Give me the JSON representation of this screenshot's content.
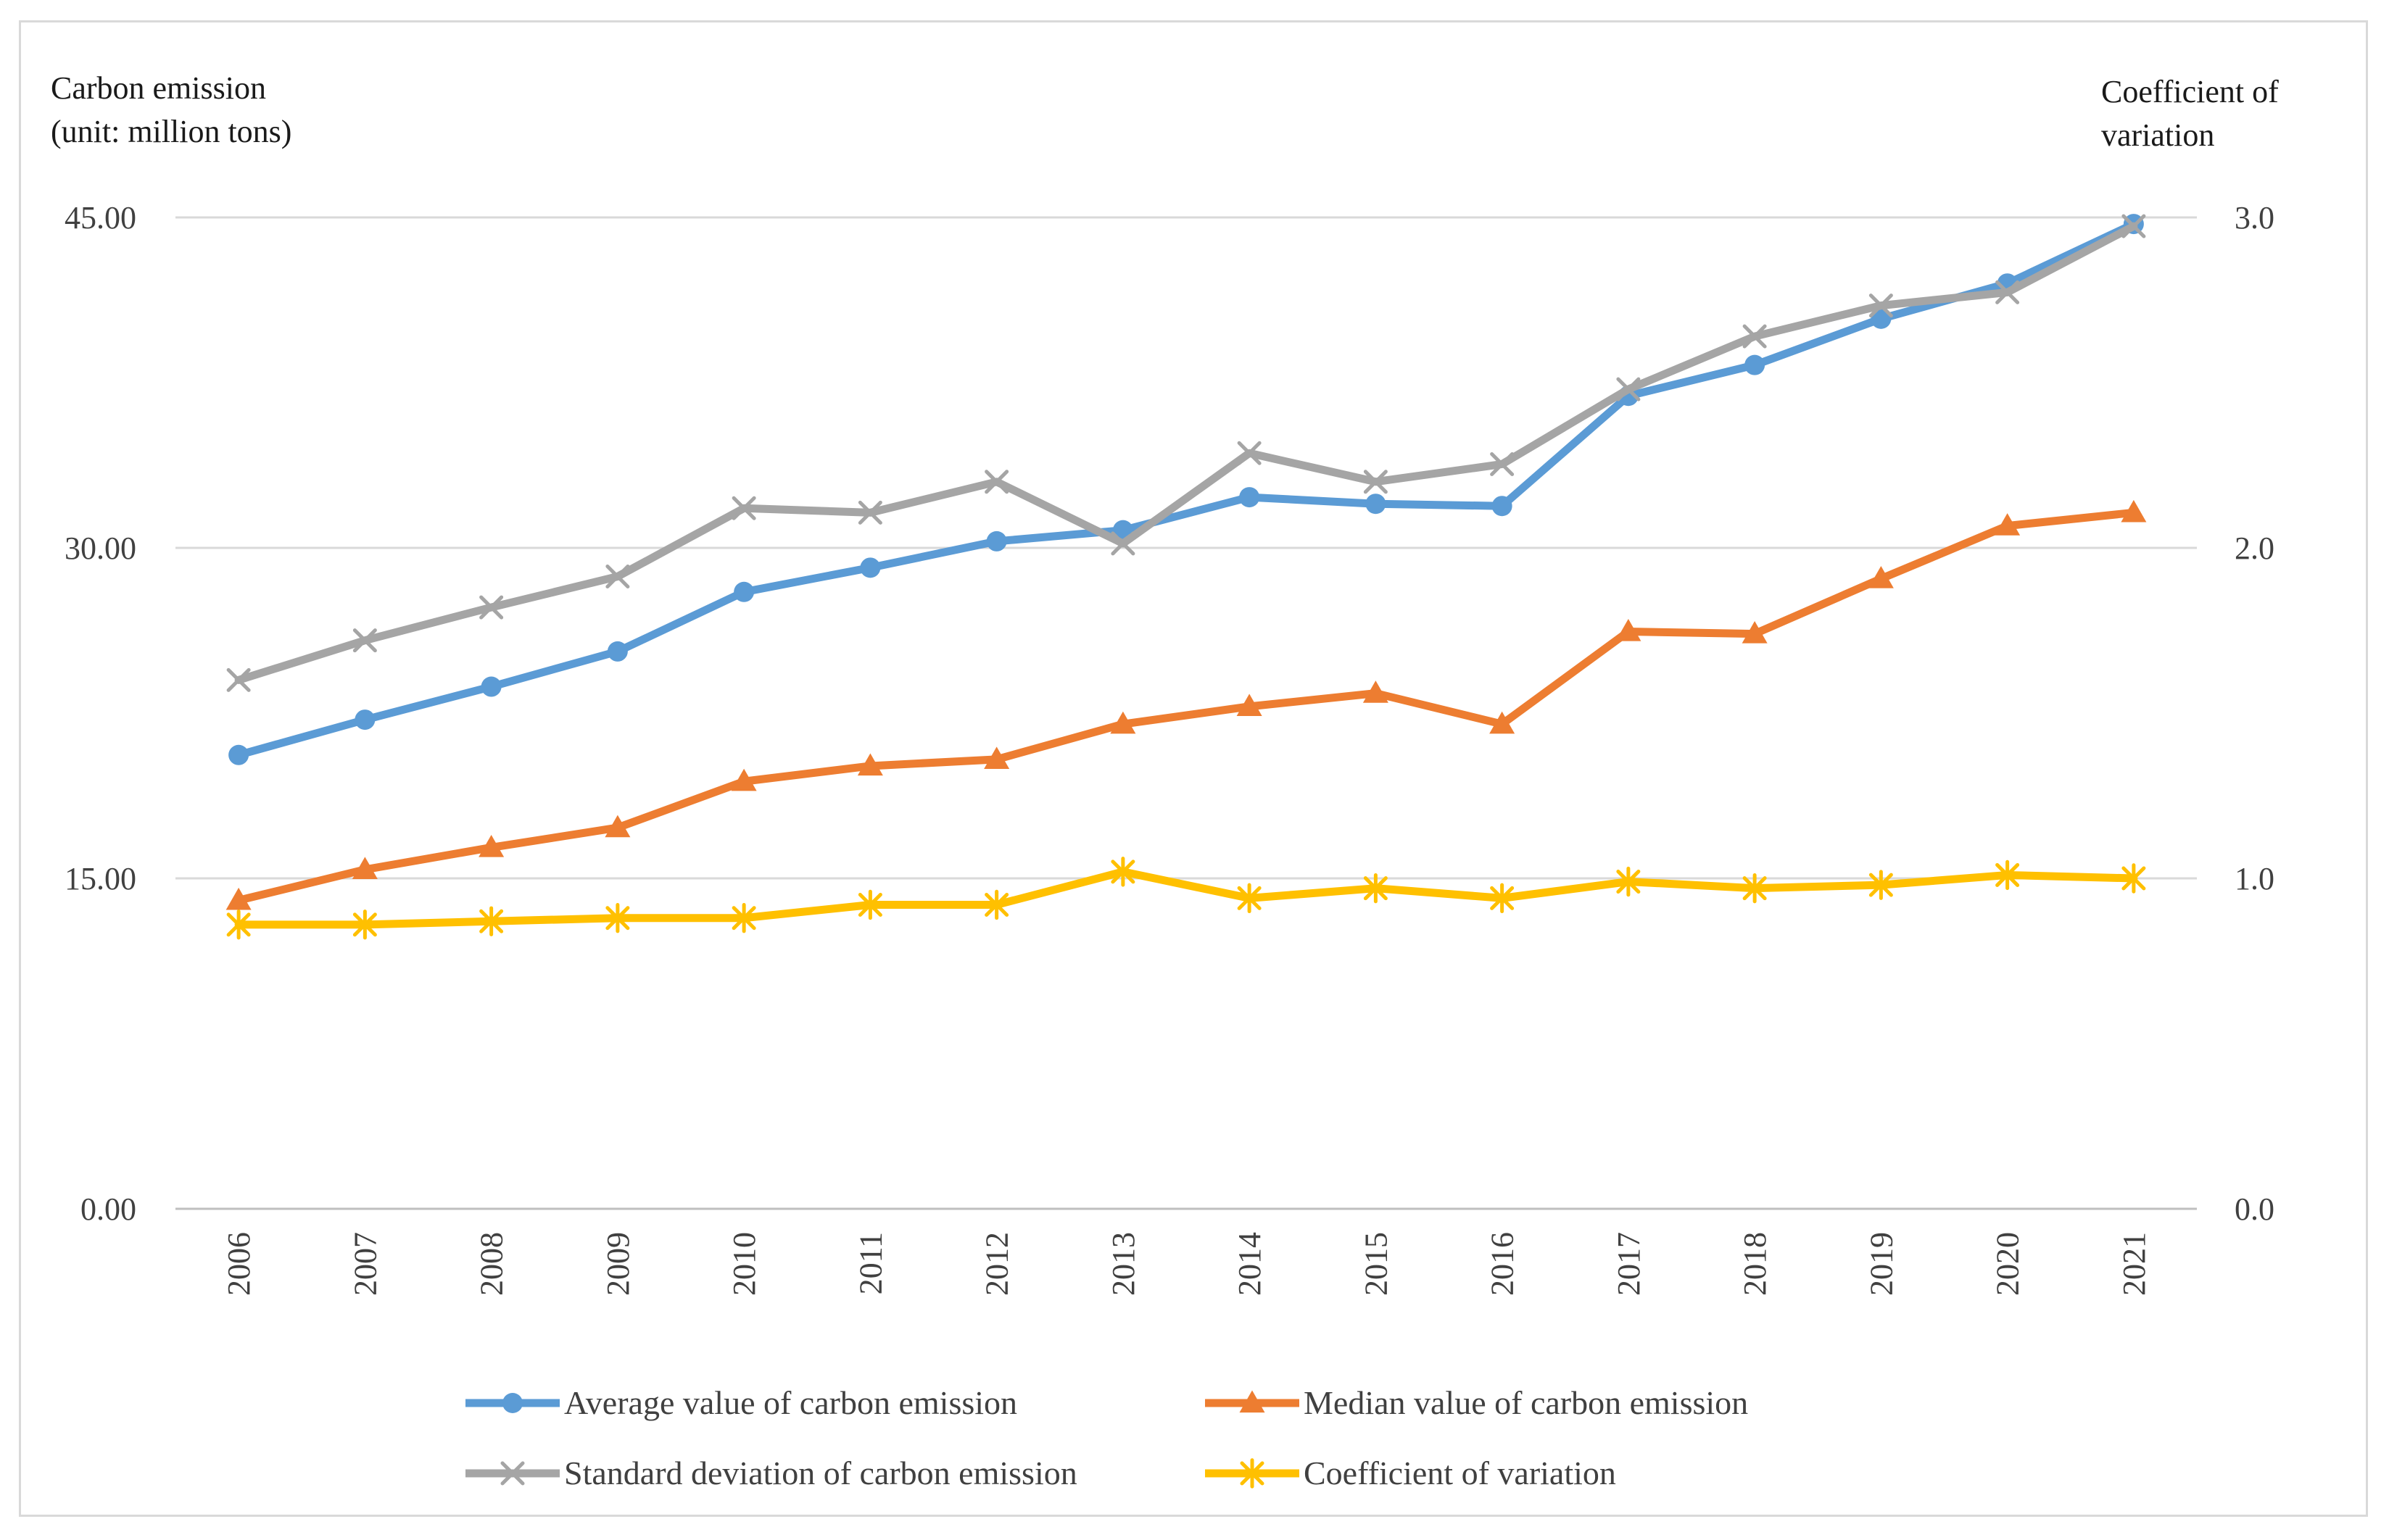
{
  "chart_data": {
    "type": "line",
    "left_axis_title": [
      "Carbon emission",
      "(unit:  million  tons)"
    ],
    "right_axis_title": [
      "Coefficient  of",
      "variation"
    ],
    "x": [
      "2006",
      "2007",
      "2008",
      "2009",
      "2010",
      "2011",
      "2012",
      "2013",
      "2014",
      "2015",
      "2016",
      "2017",
      "2018",
      "2019",
      "2020",
      "2021"
    ],
    "y_left": {
      "ticks": [
        "0.00",
        "15.00",
        "30.00",
        "45.00"
      ],
      "tick_values": [
        0,
        15,
        30,
        45
      ],
      "ylim": [
        0,
        45
      ]
    },
    "y_right": {
      "ticks": [
        "0.0",
        "1.0",
        "2.0",
        "3.0"
      ],
      "tick_values": [
        0,
        1,
        2,
        3
      ],
      "ylim": [
        0,
        3
      ]
    },
    "grid": true,
    "legend_position": "bottom",
    "series": [
      {
        "name": "Average value of carbon emission",
        "axis": "left",
        "color": "#5B9BD5",
        "marker": "circle",
        "values": [
          20.6,
          22.2,
          23.7,
          25.3,
          28.0,
          29.1,
          30.3,
          30.8,
          32.3,
          32.0,
          31.9,
          36.9,
          38.3,
          40.4,
          42.0,
          44.7
        ]
      },
      {
        "name": "Median value of carbon emission",
        "axis": "left",
        "color": "#ED7D31",
        "marker": "triangle",
        "values": [
          14.0,
          15.4,
          16.4,
          17.3,
          19.4,
          20.1,
          20.4,
          22.0,
          22.8,
          23.4,
          22.0,
          26.2,
          26.1,
          28.6,
          31.0,
          31.6
        ]
      },
      {
        "name": "Standard deviation of carbon emission",
        "axis": "left",
        "color": "#A5A5A5",
        "marker": "x",
        "values": [
          24.0,
          25.8,
          27.3,
          28.7,
          31.8,
          31.6,
          33.0,
          30.2,
          34.3,
          33.0,
          33.8,
          37.2,
          39.6,
          41.0,
          41.6,
          44.6
        ]
      },
      {
        "name": "Coefficient of variation",
        "axis": "right",
        "color": "#FFC000",
        "marker": "star",
        "values": [
          0.86,
          0.86,
          0.87,
          0.88,
          0.88,
          0.92,
          0.92,
          1.02,
          0.94,
          0.97,
          0.94,
          0.99,
          0.97,
          0.98,
          1.01,
          1.0
        ]
      }
    ]
  }
}
